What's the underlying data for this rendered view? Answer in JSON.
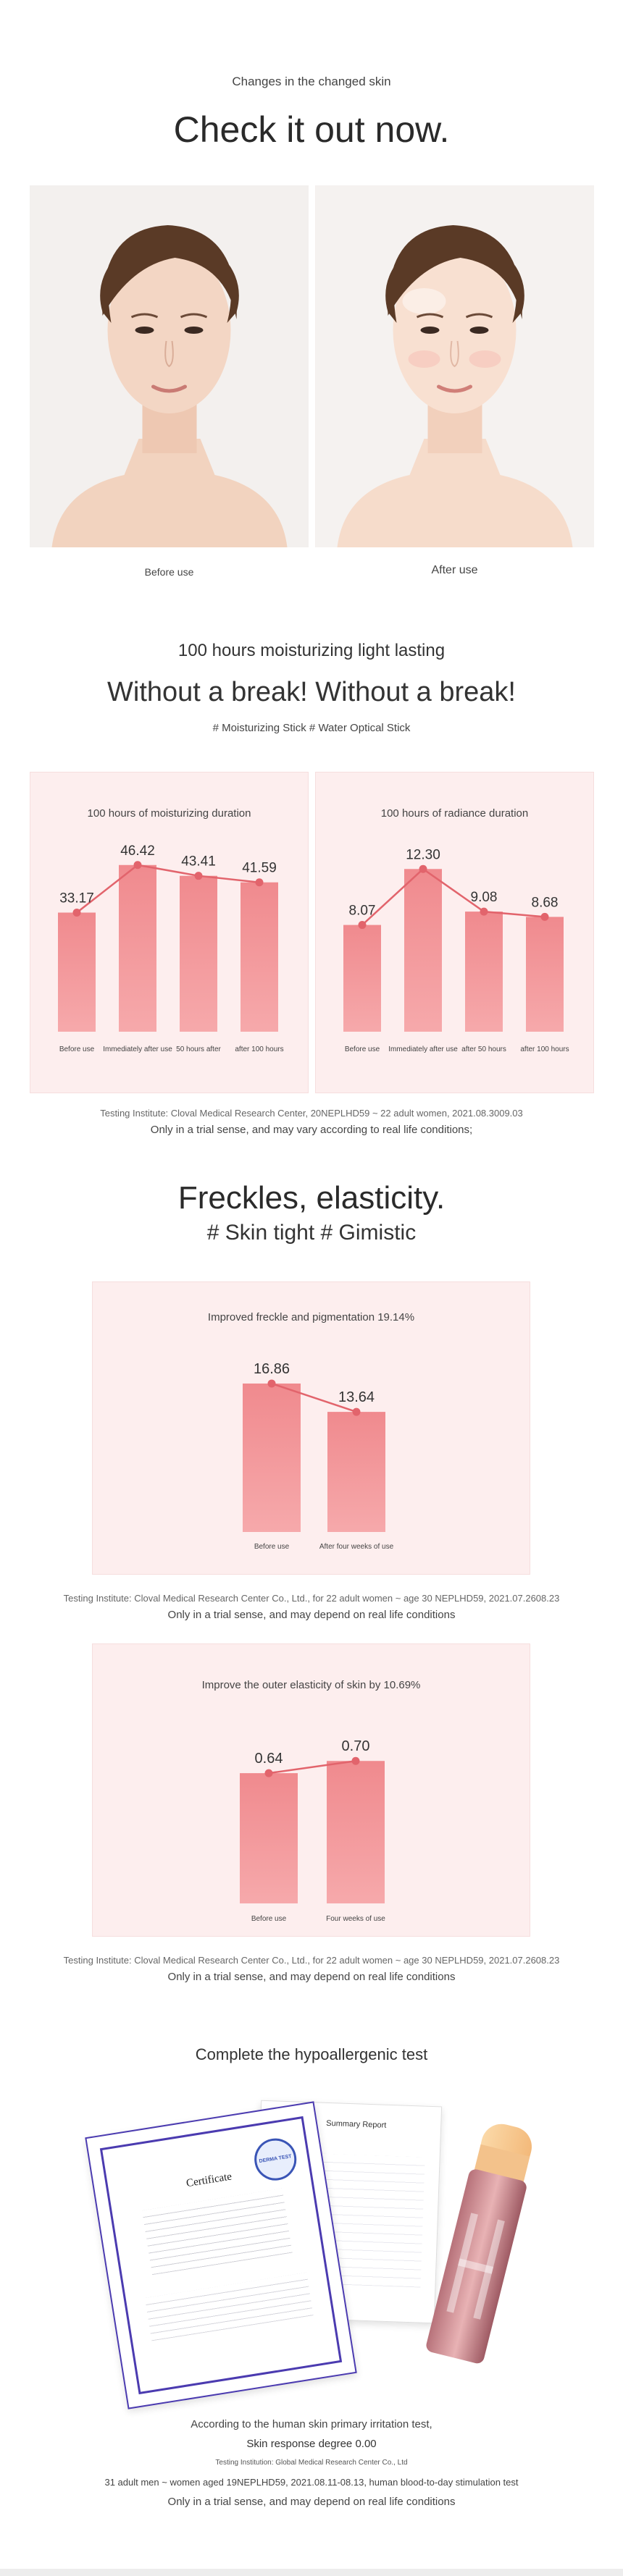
{
  "header": {
    "kicker": "Changes in the changed skin",
    "title": "Check it out now."
  },
  "compare": {
    "before_label": "Before use",
    "after_label": "After use"
  },
  "moisture": {
    "subtitle": "100 hours moisturizing light lasting",
    "title": "Without a break! Without a break!",
    "tags": "# Moisturizing Stick # Water Optical Stick"
  },
  "chart_data": [
    {
      "type": "bar",
      "title": "100 hours of moisturizing duration",
      "categories": [
        "Before use",
        "Immediately after use",
        "50 hours after",
        "after 100 hours"
      ],
      "values": [
        33.17,
        46.42,
        43.41,
        41.59
      ],
      "value_labels": [
        "33.17",
        "46.42",
        "43.41",
        "41.59"
      ],
      "ylim": [
        0,
        50
      ],
      "colors": {
        "bar": "#f08a8e",
        "line": "#e2646c"
      }
    },
    {
      "type": "bar",
      "title": "100 hours of radiance duration",
      "categories": [
        "Before use",
        "Immediately after use",
        "after 50 hours",
        "after 100 hours"
      ],
      "values": [
        8.07,
        12.3,
        9.08,
        8.68
      ],
      "value_labels": [
        "8.07",
        "12.30",
        "9.08",
        "8.68"
      ],
      "ylim": [
        0,
        13.3
      ],
      "colors": {
        "bar": "#f08a8e",
        "line": "#e2646c"
      }
    },
    {
      "type": "bar",
      "title": "Improved freckle and pigmentation 19.14%",
      "categories": [
        "Before use",
        "After four weeks of use"
      ],
      "values": [
        16.86,
        13.64
      ],
      "value_labels": [
        "16.86",
        "13.64"
      ],
      "ylim": [
        0,
        18.5
      ],
      "colors": {
        "bar": "#f08a8e",
        "line": "#e2646c"
      }
    },
    {
      "type": "bar",
      "title": "Improve the outer elasticity of skin by 10.69%",
      "categories": [
        "Before use",
        "Four weeks of use"
      ],
      "values": [
        0.64,
        0.7
      ],
      "value_labels": [
        "0.64",
        "0.70"
      ],
      "ylim": [
        0,
        0.74
      ],
      "colors": {
        "bar": "#f08a8e",
        "line": "#e2646c"
      }
    }
  ],
  "notes": {
    "moisture_institute": "Testing Institute: Cloval Medical Research Center, 20NEPLHD59 ~ 22 adult women, 2021.08.3009.03",
    "moisture_disclaimer": "Only in a trial sense, and may vary according to real life conditions;",
    "freckle_institute": "Testing Institute: Cloval Medical Research Center Co., Ltd., for 22 adult women ~ age 30 NEPLHD59, 2021.07.2608.23",
    "freckle_disclaimer": "Only in a trial sense, and may depend on real life conditions",
    "elastic_institute": "Testing Institute: Cloval Medical Research Center Co., Ltd., for 22 adult women ~ age 30 NEPLHD59, 2021.07.2608.23",
    "elastic_disclaimer": "Only in a trial sense, and may depend on real life conditions"
  },
  "freckles": {
    "title": "Freckles, elasticity.",
    "tags": "# Skin tight # Gimistic"
  },
  "hypo": {
    "title": "Complete the hypoallergenic test",
    "cert_heading": "Certificate",
    "report_heading": "Summary Report",
    "seal_text": "DERMA TEST",
    "line1": "According to the human skin primary irritation test,",
    "line2": "Skin response degree 0.00",
    "line3": "Testing Institution: Global Medical Research Center Co., Ltd",
    "line4": "31 adult men ~ women aged 19NEPLHD59, 2021.08.11-08.13, human blood-to-day stimulation test",
    "line5": "Only in a trial sense, and may depend on real life conditions"
  }
}
